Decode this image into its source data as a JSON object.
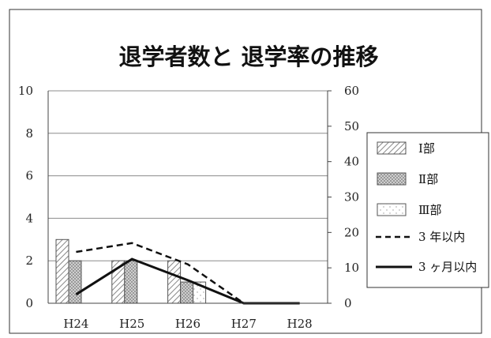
{
  "chart_data": {
    "type": "bar",
    "title": "退学者数と 退学率の推移",
    "categories": [
      "H24",
      "H25",
      "H26",
      "H27",
      "H28"
    ],
    "left_axis": {
      "ylim": [
        0,
        10
      ],
      "ticks": [
        0,
        2,
        4,
        6,
        8,
        10
      ]
    },
    "right_axis": {
      "ylim": [
        0,
        60
      ],
      "ticks": [
        0,
        10,
        20,
        30,
        40,
        50,
        60
      ]
    },
    "grid": true,
    "legend_position": "right",
    "bar_series": [
      {
        "name": "Ⅰ部",
        "values": [
          3,
          2,
          2,
          0,
          0
        ],
        "pattern": "diagonal"
      },
      {
        "name": "Ⅱ部",
        "values": [
          2,
          2,
          1,
          0,
          0
        ],
        "pattern": "crosshatch"
      },
      {
        "name": "Ⅲ部",
        "values": [
          0,
          0,
          1,
          0,
          0
        ],
        "pattern": "dots"
      }
    ],
    "line_series": [
      {
        "name": "3 年以内",
        "values": [
          14.5,
          17,
          11,
          0,
          0
        ],
        "style": "dashed",
        "axis": "right"
      },
      {
        "name": "3 ヶ月以内",
        "values": [
          2.5,
          12.5,
          6.5,
          0,
          0
        ],
        "style": "solid",
        "axis": "right"
      }
    ]
  }
}
